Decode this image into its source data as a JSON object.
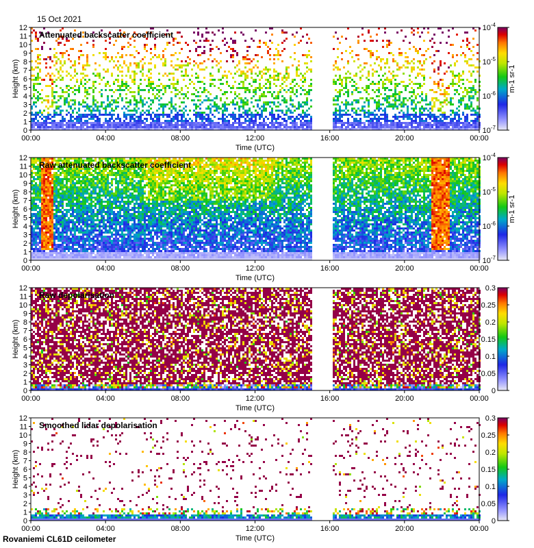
{
  "date": "15 Oct 2021",
  "footer": "Rovaniemi CL61D ceilometer",
  "chart_data": [
    {
      "type": "heatmap",
      "title": "Attenuated backscatter coefficient",
      "xlabel": "Time (UTC)",
      "ylabel": "Height (km)",
      "xticks": [
        "00:00",
        "04:00",
        "08:00",
        "12:00",
        "16:00",
        "20:00",
        "00:00"
      ],
      "yticks": [
        "0",
        "1",
        "2",
        "3",
        "4",
        "5",
        "6",
        "7",
        "8",
        "9",
        "10",
        "11",
        "12"
      ],
      "ylim": [
        0,
        12
      ],
      "xlim_hours": [
        0,
        24
      ],
      "data_gap_hours": [
        15.0,
        16.1
      ],
      "colorbar": {
        "scale": "log",
        "ticks": [
          "10-7",
          "10-6",
          "10-5",
          "10-4"
        ],
        "unit": "m-1 sr-1"
      },
      "pattern": "sparse"
    },
    {
      "type": "heatmap",
      "title": "Raw attenuated backscatter coefficient",
      "xlabel": "Time (UTC)",
      "ylabel": "Height (km)",
      "xticks": [
        "00:00",
        "04:00",
        "08:00",
        "12:00",
        "16:00",
        "20:00",
        "00:00"
      ],
      "yticks": [
        "0",
        "1",
        "2",
        "3",
        "4",
        "5",
        "6",
        "7",
        "8",
        "9",
        "10",
        "11",
        "12"
      ],
      "ylim": [
        0,
        12
      ],
      "xlim_hours": [
        0,
        24
      ],
      "data_gap_hours": [
        15.0,
        16.1
      ],
      "colorbar": {
        "scale": "log",
        "ticks": [
          "10-7",
          "10-6",
          "10-5",
          "10-4"
        ],
        "unit": "m-1 sr-1"
      },
      "pattern": "dense"
    },
    {
      "type": "heatmap",
      "title": "Raw depolarisation",
      "xlabel": "Time (UTC)",
      "ylabel": "Height (km)",
      "xticks": [
        "00:00",
        "04:00",
        "08:00",
        "12:00",
        "16:00",
        "20:00",
        "00:00"
      ],
      "yticks": [
        "0",
        "1",
        "2",
        "3",
        "4",
        "5",
        "6",
        "7",
        "8",
        "9",
        "10",
        "11",
        "12"
      ],
      "ylim": [
        0,
        12
      ],
      "xlim_hours": [
        0,
        24
      ],
      "data_gap_hours": [
        15.0,
        16.1
      ],
      "colorbar": {
        "scale": "linear",
        "ticks": [
          "0",
          "0.05",
          "0.1",
          "0.15",
          "0.2",
          "0.25",
          "0.3"
        ],
        "unit": ""
      },
      "pattern": "depol"
    },
    {
      "type": "heatmap",
      "title": "Smoothed lidar depolarisation",
      "xlabel": "Time (UTC)",
      "ylabel": "Height (km)",
      "xticks": [
        "00:00",
        "04:00",
        "08:00",
        "12:00",
        "16:00",
        "20:00",
        "00:00"
      ],
      "yticks": [
        "0",
        "1",
        "2",
        "3",
        "4",
        "5",
        "6",
        "7",
        "8",
        "9",
        "10",
        "11",
        "12"
      ],
      "ylim": [
        0,
        12
      ],
      "xlim_hours": [
        0,
        24
      ],
      "data_gap_hours": [
        15.0,
        16.1
      ],
      "colorbar": {
        "scale": "linear",
        "ticks": [
          "0",
          "0.05",
          "0.1",
          "0.15",
          "0.2",
          "0.25",
          "0.3"
        ],
        "unit": ""
      },
      "pattern": "smooth"
    }
  ]
}
